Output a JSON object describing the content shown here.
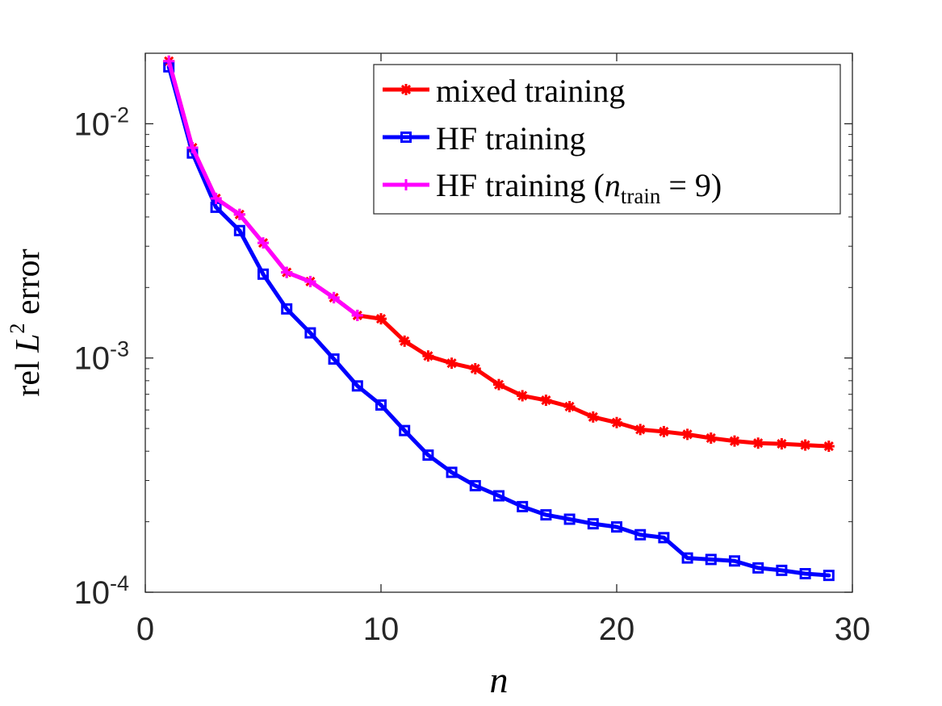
{
  "chart_data": {
    "type": "line",
    "xlabel": "n",
    "ylabel": {
      "prefix": "rel ",
      "var": "L",
      "sup": "2",
      "suffix": " error"
    },
    "xlim": [
      0,
      30
    ],
    "ylim": [
      0.0001,
      0.02
    ],
    "yscale": "log",
    "xticks": [
      0,
      10,
      20,
      30
    ],
    "xtick_labels": [
      "0",
      "10",
      "20",
      "30"
    ],
    "yticks": [
      0.0001,
      0.001,
      0.01
    ],
    "ytick_labels": [
      {
        "base": "10",
        "exp": "-4"
      },
      {
        "base": "10",
        "exp": "-3"
      },
      {
        "base": "10",
        "exp": "-2"
      }
    ],
    "grid": false,
    "legend_position": "top-right",
    "series": [
      {
        "name": "mixed training",
        "color": "#ff0000",
        "marker": "asterisk",
        "x": [
          1,
          2,
          3,
          4,
          5,
          6,
          7,
          8,
          9,
          10,
          11,
          12,
          13,
          14,
          15,
          16,
          17,
          18,
          19,
          20,
          21,
          22,
          23,
          24,
          25,
          26,
          27,
          28,
          29
        ],
        "values": [
          0.0185,
          0.0079,
          0.0048,
          0.0041,
          0.0031,
          0.00232,
          0.00212,
          0.00181,
          0.00152,
          0.00147,
          0.00118,
          0.00102,
          0.00095,
          0.0009,
          0.00077,
          0.00069,
          0.00066,
          0.00062,
          0.00056,
          0.00053,
          0.000495,
          0.000485,
          0.000472,
          0.000455,
          0.000442,
          0.000433,
          0.00043,
          0.000425,
          0.00042
        ]
      },
      {
        "name": "HF training",
        "color": "#0000ff",
        "marker": "square",
        "x": [
          1,
          2,
          3,
          4,
          5,
          6,
          7,
          8,
          9,
          10,
          11,
          12,
          13,
          14,
          15,
          16,
          17,
          18,
          19,
          20,
          21,
          22,
          23,
          24,
          25,
          26,
          27,
          28,
          29
        ],
        "values": [
          0.0175,
          0.0075,
          0.0044,
          0.0035,
          0.00228,
          0.00162,
          0.00128,
          0.00099,
          0.00076,
          0.00063,
          0.00049,
          0.000385,
          0.000325,
          0.000285,
          0.000258,
          0.000232,
          0.000214,
          0.000205,
          0.000196,
          0.00019,
          0.000176,
          0.000171,
          0.00014,
          0.000138,
          0.000136,
          0.000127,
          0.000124,
          0.00012,
          0.000118
        ]
      },
      {
        "name": "HF training",
        "name_sub": "train",
        "name_var": "n",
        "name_eq": " = 9)",
        "color": "#ff00ff",
        "marker": "plus",
        "x": [
          1,
          2,
          3,
          4,
          5,
          6,
          7,
          8,
          9
        ],
        "values": [
          0.0185,
          0.0079,
          0.0048,
          0.0041,
          0.0031,
          0.00232,
          0.00212,
          0.00181,
          0.00152
        ]
      }
    ]
  }
}
